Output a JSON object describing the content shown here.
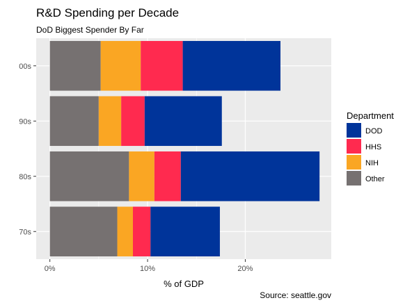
{
  "chart_data": {
    "type": "bar",
    "orientation": "horizontal",
    "stacked": true,
    "title": "R&D Spending per Decade",
    "subtitle": "DoD Biggest Spender By Far",
    "xlabel": "% of GDP",
    "ylabel": "",
    "caption": "Source: seattle.gov",
    "categories": [
      "70s",
      "80s",
      "90s",
      "00s"
    ],
    "stack_order": [
      "Other",
      "NIH",
      "HHS",
      "DOD"
    ],
    "series": [
      {
        "name": "Other",
        "color": "#767171",
        "values": [
          6.9,
          8.1,
          5.0,
          5.2
        ]
      },
      {
        "name": "NIH",
        "color": "#FAA623",
        "values": [
          1.6,
          2.6,
          2.3,
          4.1
        ]
      },
      {
        "name": "HHS",
        "color": "#FF2A4F",
        "values": [
          1.8,
          2.7,
          2.4,
          4.3
        ]
      },
      {
        "name": "DOD",
        "color": "#00349A",
        "values": [
          7.1,
          14.2,
          7.9,
          10.0
        ]
      }
    ],
    "xlim": [
      -1.4,
      28.8
    ],
    "x_ticks": [
      0,
      10,
      20
    ],
    "x_tick_labels": [
      "0%",
      "10%",
      "20%"
    ],
    "grid": true,
    "legend": {
      "title": "Department",
      "position": "right",
      "entries": [
        "DOD",
        "HHS",
        "NIH",
        "Other"
      ]
    },
    "panel_background": "#EBEBEB",
    "grid_color": "#FFFFFF"
  }
}
